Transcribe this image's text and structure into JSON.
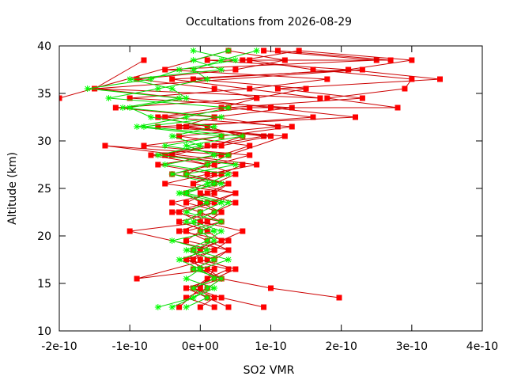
{
  "chart_data": {
    "type": "line",
    "title": "Occultations from 2026-08-29",
    "xlabel": "SO2 VMR",
    "ylabel": "Altitude (km)",
    "xlim": [
      -2e-10,
      4e-10
    ],
    "ylim": [
      10,
      40
    ],
    "x_ticks": [
      -2e-10,
      -1e-10,
      0,
      1e-10,
      2e-10,
      3e-10,
      4e-10
    ],
    "x_tick_labels": [
      "-2e-10",
      "-1e-10",
      "0e+00",
      "1e-10",
      "2e-10",
      "3e-10",
      "4e-10"
    ],
    "y_ticks": [
      10,
      15,
      20,
      25,
      30,
      35,
      40
    ],
    "y_tick_labels": [
      "10",
      "15",
      "20",
      "25",
      "30",
      "35",
      "40"
    ],
    "grid": false,
    "legend": "none",
    "series": [
      {
        "marker": "square",
        "color": "#ff0000",
        "line_color": "#cc0000",
        "profiles": [
          {
            "x": [
              2e-11,
              -2e-11,
              1e-11,
              3e-11,
              0,
              -1e-11,
              2e-11,
              4e-11,
              -3e-11,
              1e-11,
              3e-11,
              0,
              -2e-11,
              2e-11,
              5e-11,
              1e-11,
              -4e-11,
              2e-11,
              6e-11,
              1e-11,
              -6e-11,
              3e-11,
              8e-11,
              2e-11,
              -9e-11,
              5e-11,
              1.2e-10,
              4e-11,
              -2e-10
            ],
            "y": [
              12.5,
              13.5,
              14.5,
              15.5,
              16.5,
              17.5,
              18.5,
              19.5,
              20.5,
              21.5,
              22.5,
              23.5,
              24.5,
              25.5,
              26.5,
              27.5,
              28.5,
              29.5,
              30.5,
              31.5,
              32.5,
              33.5,
              34.5,
              35.5,
              36.5,
              37.5,
              38.5,
              39.5,
              34.5
            ]
          },
          {
            "x": [
              9e-11,
              3e-11,
              -1e-11,
              1e-11,
              4e-11,
              -2e-11,
              0,
              3e-11,
              1e-11,
              -3e-11,
              2e-11,
              5e-11,
              0,
              -1e-11,
              3e-11,
              6e-11,
              -5e-11,
              1e-11,
              9e-11,
              -3e-11,
              2e-11,
              1.3e-10,
              -1e-10,
              7e-11,
              1.8e-10,
              -5e-11,
              2.5e-10,
              9e-11
            ],
            "y": [
              12.5,
              13.5,
              14.5,
              15.5,
              16.5,
              17.5,
              18.5,
              19.5,
              20.5,
              21.5,
              22.5,
              23.5,
              24.5,
              25.5,
              26.5,
              27.5,
              28.5,
              29.5,
              30.5,
              31.5,
              32.5,
              33.5,
              34.5,
              35.5,
              36.5,
              37.5,
              38.5,
              39.5
            ]
          },
          {
            "x": [
              1.97e-10,
              1e-10,
              3e-11,
              -1e-11,
              2e-11,
              4e-11,
              1e-11,
              -2e-11,
              3e-11,
              0,
              -4e-11,
              2e-11,
              4e-11,
              -2e-11,
              1e-11,
              -7e-11,
              3e-11,
              1e-10,
              -2e-11,
              1.6e-10,
              4e-11,
              2.3e-10,
              1.1e-10,
              3.4e-10,
              2.1e-10,
              3e-10,
              1.4e-10,
              6e-11
            ],
            "y": [
              13.5,
              14.5,
              15.5,
              16.5,
              17.5,
              18.5,
              19.5,
              20.5,
              21.5,
              22.5,
              23.5,
              24.5,
              25.5,
              26.5,
              27.5,
              28.5,
              29.5,
              30.5,
              31.5,
              32.5,
              33.5,
              34.5,
              35.5,
              36.5,
              37.5,
              38.5,
              39.5,
              38.5
            ]
          },
          {
            "x": [
              -3e-11,
              0,
              2e-11,
              -9e-11,
              1e-11,
              4e-11,
              -2e-11,
              0,
              3e-11,
              -4e-11,
              1e-11,
              5e-11,
              -1e-11,
              2e-11,
              -6e-11,
              3e-11,
              7e-11,
              -3e-11,
              1.1e-10,
              2e-11,
              -1.2e-10,
              8e-11,
              1.5e-10,
              -1e-11,
              2.1e-10,
              1e-11,
              2.7e-10,
              1.1e-10
            ],
            "y": [
              12.5,
              14.5,
              16.5,
              15.5,
              17.5,
              18.5,
              19.5,
              20.5,
              21.5,
              22.5,
              23.5,
              24.5,
              25.5,
              26.5,
              27.5,
              28.5,
              29.5,
              30.5,
              31.5,
              32.5,
              33.5,
              34.5,
              35.5,
              36.5,
              37.5,
              38.5,
              38.5,
              39.5
            ]
          },
          {
            "x": [
              0,
              2e-11,
              -1e-11,
              3e-11,
              1e-11,
              -2e-11,
              2e-11,
              -1e-10,
              1e-11,
              3e-11,
              -2e-11,
              1e-11,
              4e-11,
              -4e-11,
              2e-11,
              7e-11,
              -8e-11,
              3e-11,
              1.3e-10,
              -5e-11,
              7e-11,
              2.8e-10,
              1.8e-10,
              2.9e-10,
              3e-10,
              1.6e-10,
              7e-11
            ],
            "y": [
              12.5,
              13.5,
              14.5,
              15.5,
              16.5,
              17.5,
              18.5,
              20.5,
              21.5,
              22.5,
              23.5,
              24.5,
              25.5,
              26.5,
              27.5,
              28.5,
              29.5,
              30.5,
              31.5,
              32.5,
              33.5,
              33.5,
              34.5,
              35.5,
              36.5,
              37.5,
              38.5
            ]
          },
          {
            "x": [
              4e-11,
              1e-11,
              -2e-11,
              2e-11,
              5e-11,
              0,
              -1e-11,
              3e-11,
              6e-11,
              0,
              -3e-11,
              2e-11,
              5e-11,
              -5e-11,
              1e-11,
              8e-11,
              -1.35e-10,
              4e-11,
              1.2e-10,
              -6e-11,
              2.2e-10,
              1e-10,
              -1.5e-10,
              1.7e-10,
              -4e-11,
              2.3e-10,
              -1.5e-10,
              -8e-11
            ],
            "y": [
              12.5,
              13.5,
              14.5,
              15.5,
              16.5,
              17.5,
              18.5,
              19.5,
              20.5,
              21.5,
              22.5,
              23.5,
              24.5,
              25.5,
              26.5,
              27.5,
              29.5,
              28.5,
              30.5,
              31.5,
              32.5,
              33.5,
              35.5,
              34.5,
              36.5,
              37.5,
              35.5,
              38.5
            ]
          }
        ]
      },
      {
        "marker": "star",
        "color": "#00ff00",
        "line_color": "#00dd00",
        "profiles": [
          {
            "x": [
              -6e-11,
              -1e-11,
              2e-11,
              -2e-11,
              0,
              -3e-11,
              1e-11,
              -4e-11,
              2e-11,
              -2e-11,
              0,
              3e-11,
              -3e-11,
              1e-11,
              4e-11,
              -5e-11,
              2e-11,
              -2e-11,
              6e-11,
              -8e-11,
              3e-11,
              -1.1e-10,
              -3e-11,
              -1.6e-10,
              -7e-11,
              -3e-11,
              5e-11,
              -1e-11
            ],
            "y": [
              12.5,
              13.5,
              14.5,
              15.5,
              16.5,
              17.5,
              18.5,
              19.5,
              20.5,
              21.5,
              22.5,
              23.5,
              24.5,
              25.5,
              26.5,
              27.5,
              28.5,
              29.5,
              30.5,
              31.5,
              32.5,
              33.5,
              34.5,
              35.5,
              36.5,
              37.5,
              38.5,
              39.5
            ]
          },
          {
            "x": [
              -4e-11,
              -1e-11,
              1e-11,
              3e-11,
              -1e-11,
              2e-11,
              -2e-11,
              1e-11,
              3e-11,
              -1e-11,
              2e-11,
              4e-11,
              -2e-11,
              2e-11,
              -4e-11,
              1e-11,
              4e-11,
              -5e-11,
              3e-11,
              -9e-11,
              -2e-11,
              4e-11,
              -1.3e-10,
              -6e-11,
              1e-11,
              -1e-11,
              3e-11,
              8e-11
            ],
            "y": [
              12.5,
              13.5,
              14.5,
              15.5,
              16.5,
              17.5,
              18.5,
              19.5,
              20.5,
              21.5,
              22.5,
              23.5,
              24.5,
              25.5,
              26.5,
              27.5,
              28.5,
              29.5,
              30.5,
              31.5,
              32.5,
              33.5,
              34.5,
              35.5,
              36.5,
              37.5,
              38.5,
              39.5
            ]
          },
          {
            "x": [
              -2e-11,
              1e-11,
              -1e-11,
              2e-11,
              0,
              4e-11,
              -1e-11,
              2e-11,
              0,
              3e-11,
              -2e-11,
              1e-11,
              -3e-11,
              3e-11,
              -2e-11,
              5e-11,
              -6e-11,
              0,
              -4e-11,
              2e-11,
              -7e-11,
              -1e-10,
              -2e-11,
              -4e-11,
              -1e-10,
              3e-11,
              -1e-11,
              4e-11
            ],
            "y": [
              12.5,
              13.5,
              14.5,
              15.5,
              16.5,
              17.5,
              18.5,
              19.5,
              20.5,
              21.5,
              22.5,
              23.5,
              24.5,
              25.5,
              26.5,
              27.5,
              28.5,
              29.5,
              30.5,
              31.5,
              32.5,
              33.5,
              34.5,
              35.5,
              36.5,
              37.5,
              38.5,
              39.5
            ]
          }
        ]
      }
    ]
  }
}
